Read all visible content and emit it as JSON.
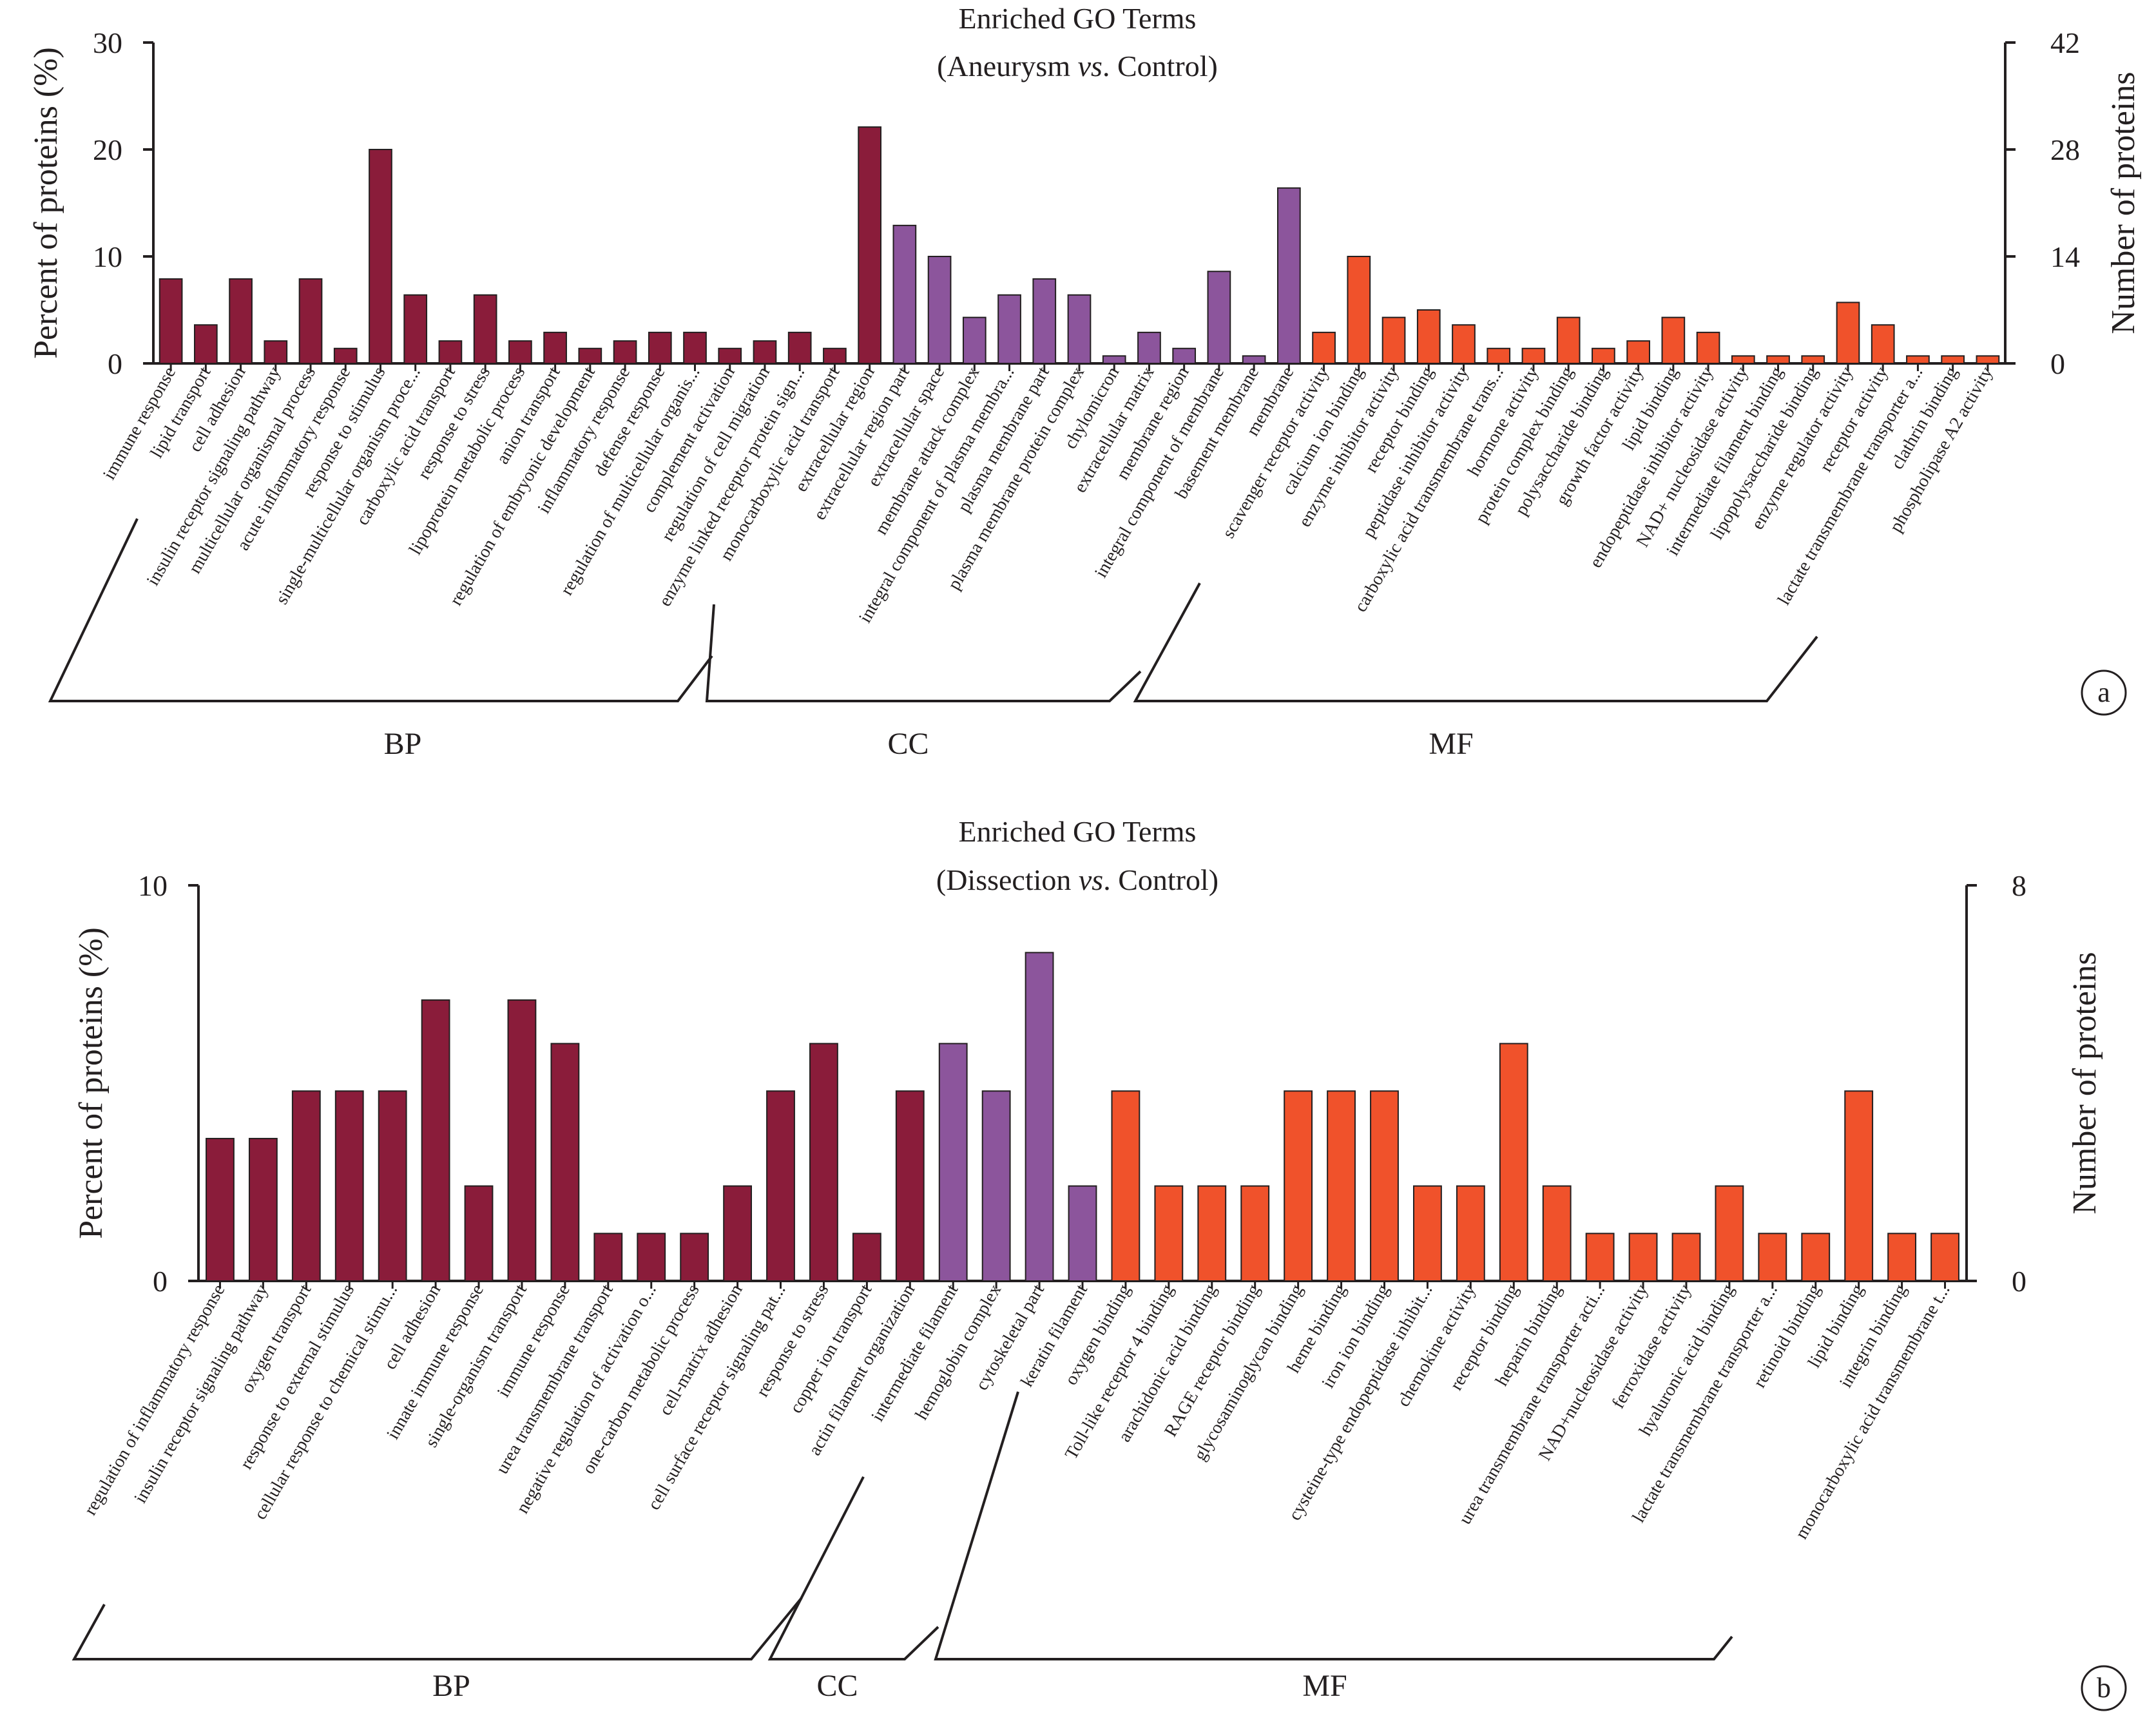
{
  "figure": {
    "panels": [
      "a",
      "b"
    ]
  },
  "chart_data": [
    {
      "type": "bar",
      "panel_label": "a",
      "title": "Enriched GO Terms",
      "subtitle_parts": [
        "(Aneurysm ",
        "vs",
        ". Control)"
      ],
      "ylabel_left": "Percent of proteins (%)",
      "ylabel_right": "Number of proteins",
      "ylim": [
        0,
        30
      ],
      "yticks_left": [
        "0",
        "10",
        "20",
        "30"
      ],
      "ylim_right": [
        0,
        42
      ],
      "yticks_right": [
        "0",
        "14",
        "28",
        "42"
      ],
      "group_colors": {
        "BP": "#8a1c3a",
        "CC": "#8c559c",
        "MF": "#f0522b"
      },
      "groups": [
        {
          "name": "BP",
          "start": 0,
          "end": 20
        },
        {
          "name": "CC",
          "start": 21,
          "end": 32
        },
        {
          "name": "MF",
          "start": 33,
          "end": 52
        }
      ],
      "categories": [
        "immune response",
        "lipid transport",
        "cell adhesion",
        "insulin receptor signaling pathway",
        "multicellular organismal process",
        "acute inflammatory response",
        "response to stimulus",
        "single-multicellular organism proce...",
        "carboxylic acid transport",
        "response to stress",
        "lipoprotein metabolic process",
        "anion transport",
        "regulation of embryonic development",
        "inflammatory response",
        "defense response",
        "regulation of multicellular organis...",
        "complement activation",
        "regulation of cell migration",
        "enzyme linked receptor protein sign...",
        "monocarboxylic acid transport",
        "extracellular region",
        "extracellular region part",
        "extracellular space",
        "membrane attack complex",
        "integral component of plasma membra...",
        "plasma membrane part",
        "plasma membrane protein complex",
        "chylomicron",
        "extracellular matrix",
        "membrane region",
        "integral component of membrane",
        "basement membrane",
        "membrane",
        "scavenger receptor activity",
        "calcium ion binding",
        "enzyme inhibitor activity",
        "receptor binding",
        "peptidase inhibitor activity",
        "carboxylic acid transmembrane trans...",
        "hormone activity",
        "protein complex binding",
        "polysaccharide binding",
        "growth factor activity",
        "lipid binding",
        "endopeptidase inhibitor activity",
        "NAD+ nucleosidase activity",
        "intermediate filament binding",
        "lipopolysaccharide binding",
        "enzyme regulator activity",
        "receptor activity",
        "lactate transmembrane transporter a...",
        "clathrin binding",
        "phospholipase A2 activity"
      ],
      "values": [
        7.9,
        3.6,
        7.9,
        2.1,
        7.9,
        1.4,
        20.0,
        6.4,
        2.1,
        6.4,
        2.1,
        2.9,
        1.4,
        2.1,
        2.9,
        2.9,
        1.4,
        2.1,
        2.9,
        1.4,
        22.1,
        12.9,
        10.0,
        4.3,
        6.4,
        7.9,
        6.4,
        0.7,
        2.9,
        1.4,
        8.6,
        0.7,
        16.4,
        2.9,
        10.0,
        4.3,
        5.0,
        3.6,
        1.4,
        1.4,
        4.3,
        1.4,
        2.1,
        4.3,
        2.9,
        0.7,
        0.7,
        0.7,
        5.7,
        3.6,
        0.7,
        0.7,
        0.7
      ]
    },
    {
      "type": "bar",
      "panel_label": "b",
      "title": "Enriched GO Terms",
      "subtitle_parts": [
        "(Dissection ",
        "vs",
        ". Control)"
      ],
      "ylabel_left": "Percent of proteins (%)",
      "ylabel_right": "Number of proteins",
      "ylim": [
        0,
        10
      ],
      "yticks_left": [
        "0",
        "10"
      ],
      "ylim_right": [
        0,
        8
      ],
      "yticks_right": [
        "0",
        "8"
      ],
      "group_colors": {
        "BP": "#8a1c3a",
        "CC": "#8c559c",
        "MF": "#f0522b"
      },
      "groups": [
        {
          "name": "BP",
          "start": 0,
          "end": 16
        },
        {
          "name": "CC",
          "start": 17,
          "end": 20
        },
        {
          "name": "MF",
          "start": 21,
          "end": 40
        }
      ],
      "categories": [
        "regulation of inflammatory response",
        "insulin receptor signaling pathway",
        "oxygen transport",
        "response to external stimulus",
        "cellular response to chemical stimu...",
        "cell adhesion",
        "innate immune response",
        "single-organism transport",
        "immune response",
        "urea transmembrane transport",
        "negative regulation of activation o...",
        "one-carbon metabolic process",
        "cell-matrix adhesion",
        "cell surface receptor signaling pat...",
        "response to stress",
        "copper ion transport",
        "actin filament organization",
        "intermediate filament",
        "hemoglobin complex",
        "cytoskeletal part",
        "keratin filament",
        "oxygen binding",
        "Toll-like receptor 4 binding",
        "arachidonic acid binding",
        "RAGE receptor binding",
        "glycosaminoglycan binding",
        "heme binding",
        "iron ion binding",
        "cysteine-type endopeptidase inhibit...",
        "chemokine activity",
        "receptor binding",
        "heparin binding",
        "urea transmembrane transporter acti...",
        "NAD+nucleosidase activity",
        "ferroxidase activity",
        "hyaluronic acid binding",
        "lactate transmembrane transporter a...",
        "retinoid binding",
        "lipid binding",
        "integrin binding",
        "monocarboxylic acid transmembrane t..."
      ],
      "values": [
        3.6,
        3.6,
        4.8,
        4.8,
        4.8,
        7.1,
        2.4,
        7.1,
        6.0,
        1.2,
        1.2,
        1.2,
        2.4,
        4.8,
        6.0,
        1.2,
        4.8,
        6.0,
        4.8,
        8.3,
        2.4,
        4.8,
        2.4,
        2.4,
        2.4,
        4.8,
        4.8,
        4.8,
        2.4,
        2.4,
        6.0,
        2.4,
        1.2,
        1.2,
        1.2,
        2.4,
        1.2,
        1.2,
        4.8,
        1.2,
        1.2
      ]
    }
  ]
}
